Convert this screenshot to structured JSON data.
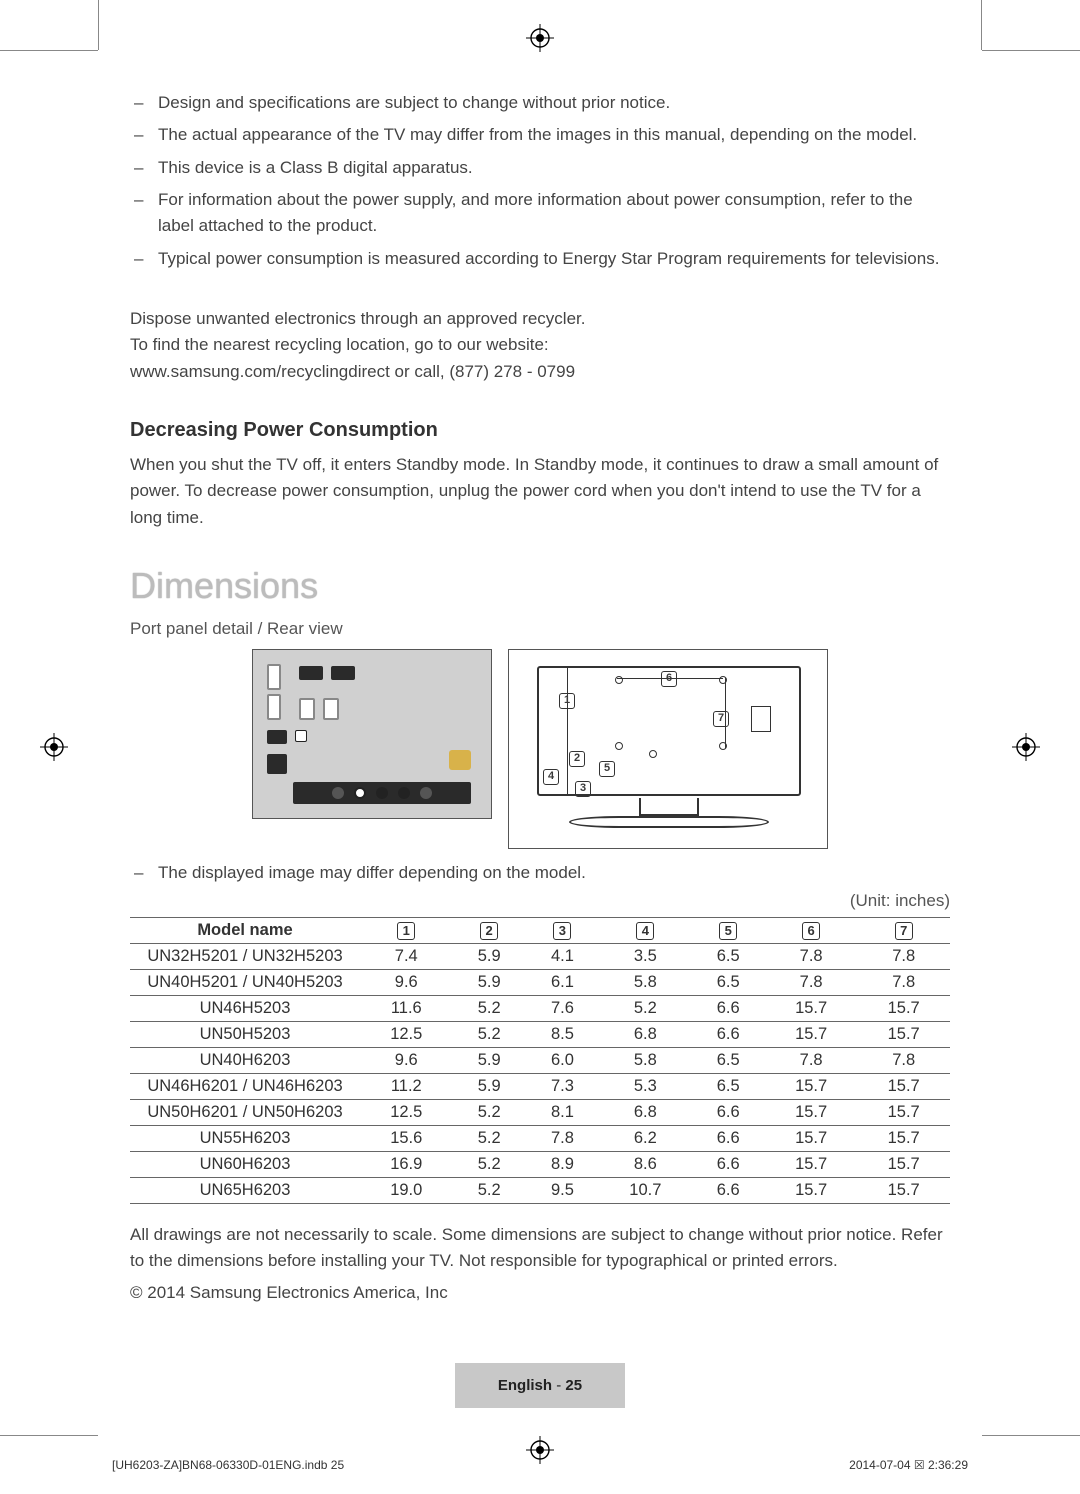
{
  "bullets": [
    "Design and specifications are subject to change without prior notice.",
    "The actual appearance of the TV may differ from the images in this manual, depending on the model.",
    "This device is a Class B digital apparatus.",
    "For information about the power supply, and more information about power consumption, refer to the label attached to the product.",
    "Typical power consumption is measured according to Energy Star Program requirements for televisions."
  ],
  "recycle": {
    "l1": "Dispose unwanted electronics through an approved recycler.",
    "l2": "To find the nearest recycling location, go to our website:",
    "l3": "www.samsung.com/recyclingdirect or call, (877) 278 - 0799"
  },
  "power_section": {
    "heading": "Decreasing Power Consumption",
    "body": "When you shut the TV off, it enters Standby mode. In Standby mode, it continues to draw a small amount of power. To decrease power consumption, unplug the power cord when you don't intend to use the TV for a long time."
  },
  "dimensions": {
    "title": "Dimensions",
    "subtitle": "Port panel detail / Rear view",
    "note": "The displayed image may differ depending on the model.",
    "unit": "(Unit: inches)",
    "columns": [
      "Model name",
      "1",
      "2",
      "3",
      "4",
      "5",
      "6",
      "7"
    ],
    "rows": [
      [
        "UN32H5201 / UN32H5203",
        "7.4",
        "5.9",
        "4.1",
        "3.5",
        "6.5",
        "7.8",
        "7.8"
      ],
      [
        "UN40H5201 / UN40H5203",
        "9.6",
        "5.9",
        "6.1",
        "5.8",
        "6.5",
        "7.8",
        "7.8"
      ],
      [
        "UN46H5203",
        "11.6",
        "5.2",
        "7.6",
        "5.2",
        "6.6",
        "15.7",
        "15.7"
      ],
      [
        "UN50H5203",
        "12.5",
        "5.2",
        "8.5",
        "6.8",
        "6.6",
        "15.7",
        "15.7"
      ],
      [
        "UN40H6203",
        "9.6",
        "5.9",
        "6.0",
        "5.8",
        "6.5",
        "7.8",
        "7.8"
      ],
      [
        "UN46H6201 / UN46H6203",
        "11.2",
        "5.9",
        "7.3",
        "5.3",
        "6.5",
        "15.7",
        "15.7"
      ],
      [
        "UN50H6201 / UN50H6203",
        "12.5",
        "5.2",
        "8.1",
        "6.8",
        "6.6",
        "15.7",
        "15.7"
      ],
      [
        "UN55H6203",
        "15.6",
        "5.2",
        "7.8",
        "6.2",
        "6.6",
        "15.7",
        "15.7"
      ],
      [
        "UN60H6203",
        "16.9",
        "5.2",
        "8.9",
        "8.6",
        "6.6",
        "15.7",
        "15.7"
      ],
      [
        "UN65H6203",
        "19.0",
        "5.2",
        "9.5",
        "10.7",
        "6.6",
        "15.7",
        "15.7"
      ]
    ],
    "after": "All drawings are not necessarily to scale. Some dimensions are subject to change without prior notice. Refer to the dimensions before installing your TV. Not responsible for typographical or printed errors.",
    "copyright": "© 2014 Samsung Electronics America, Inc"
  },
  "footer": {
    "lang": "English",
    "sep": " - ",
    "page": "25"
  },
  "print_meta": {
    "left": "[UH6203-ZA]BN68-06330D-01ENG.indb   25",
    "right": "2014-07-04   ☒ 2:36:29"
  },
  "colors": {
    "text": "#3a3a3a",
    "muted": "#555555",
    "title_fill": "#bcbcbc",
    "footer_bg": "#c8c8c8",
    "panel_bg": "#d0d0d0",
    "border": "#666666"
  }
}
